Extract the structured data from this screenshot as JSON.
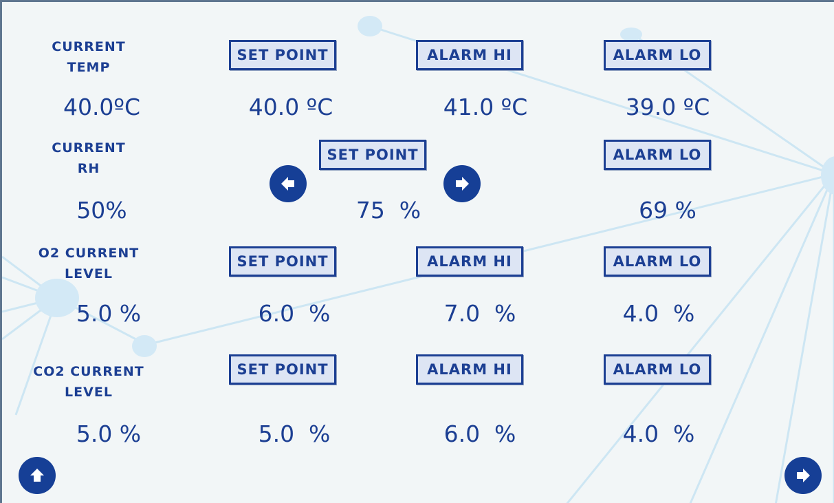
{
  "rows": [
    {
      "label": [
        "CURRENT",
        "TEMP"
      ],
      "current": "40.0ºC",
      "cells": [
        {
          "button": "SET POINT",
          "value": "40.0 ºC"
        },
        {
          "button": "ALARM HI",
          "value": "41.0 ºC"
        },
        {
          "button": "ALARM LO",
          "value": "39.0 ºC"
        }
      ]
    },
    {
      "label": [
        "CURRENT",
        "RH"
      ],
      "current": "50%",
      "cells": [
        {
          "button": "SET POINT",
          "value": "75  %"
        },
        {
          "button": "ALARM LO",
          "value": "69 %"
        }
      ]
    },
    {
      "label": [
        "O2 CURRENT",
        "LEVEL"
      ],
      "current": "5.0 %",
      "cells": [
        {
          "button": "SET POINT",
          "value": "6.0  %"
        },
        {
          "button": "ALARM HI",
          "value": "7.0  %"
        },
        {
          "button": "ALARM LO",
          "value": "4.0  %"
        }
      ]
    },
    {
      "label": [
        "CO2 CURRENT",
        "LEVEL"
      ],
      "current": "5.0 %",
      "cells": [
        {
          "button": "SET POINT",
          "value": "5.0  %"
        },
        {
          "button": "ALARM HI",
          "value": "6.0  %"
        },
        {
          "button": "ALARM LO",
          "value": "4.0  %"
        }
      ]
    }
  ]
}
